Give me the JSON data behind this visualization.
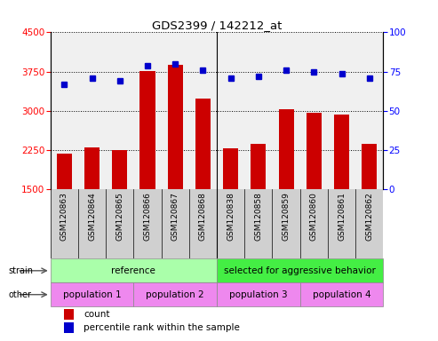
{
  "title": "GDS2399 / 142212_at",
  "samples": [
    "GSM120863",
    "GSM120864",
    "GSM120865",
    "GSM120866",
    "GSM120867",
    "GSM120868",
    "GSM120838",
    "GSM120858",
    "GSM120859",
    "GSM120860",
    "GSM120861",
    "GSM120862"
  ],
  "counts": [
    2190,
    2310,
    2260,
    3760,
    3880,
    3230,
    2290,
    2380,
    3040,
    2970,
    2940,
    2380
  ],
  "percentiles": [
    67,
    71,
    69,
    79,
    80,
    76,
    71,
    72,
    76,
    75,
    74,
    71
  ],
  "ylim_left": [
    1500,
    4500
  ],
  "ylim_right": [
    0,
    100
  ],
  "yticks_left": [
    1500,
    2250,
    3000,
    3750,
    4500
  ],
  "yticks_right": [
    0,
    25,
    50,
    75,
    100
  ],
  "bar_color": "#cc0000",
  "dot_color": "#0000cc",
  "bar_bottom": 1500,
  "plot_bg": "#f0f0f0",
  "label_bg": "#d0d0d0",
  "strain_ref_color": "#aaffaa",
  "strain_agg_color": "#44ee44",
  "pop_color": "#ee88ee",
  "strain_groups": [
    {
      "label": "reference",
      "start": 0,
      "end": 6
    },
    {
      "label": "selected for aggressive behavior",
      "start": 6,
      "end": 12
    }
  ],
  "pop_groups": [
    {
      "label": "population 1",
      "start": 0,
      "end": 3
    },
    {
      "label": "population 2",
      "start": 3,
      "end": 6
    },
    {
      "label": "population 3",
      "start": 6,
      "end": 9
    },
    {
      "label": "population 4",
      "start": 9,
      "end": 12
    }
  ]
}
